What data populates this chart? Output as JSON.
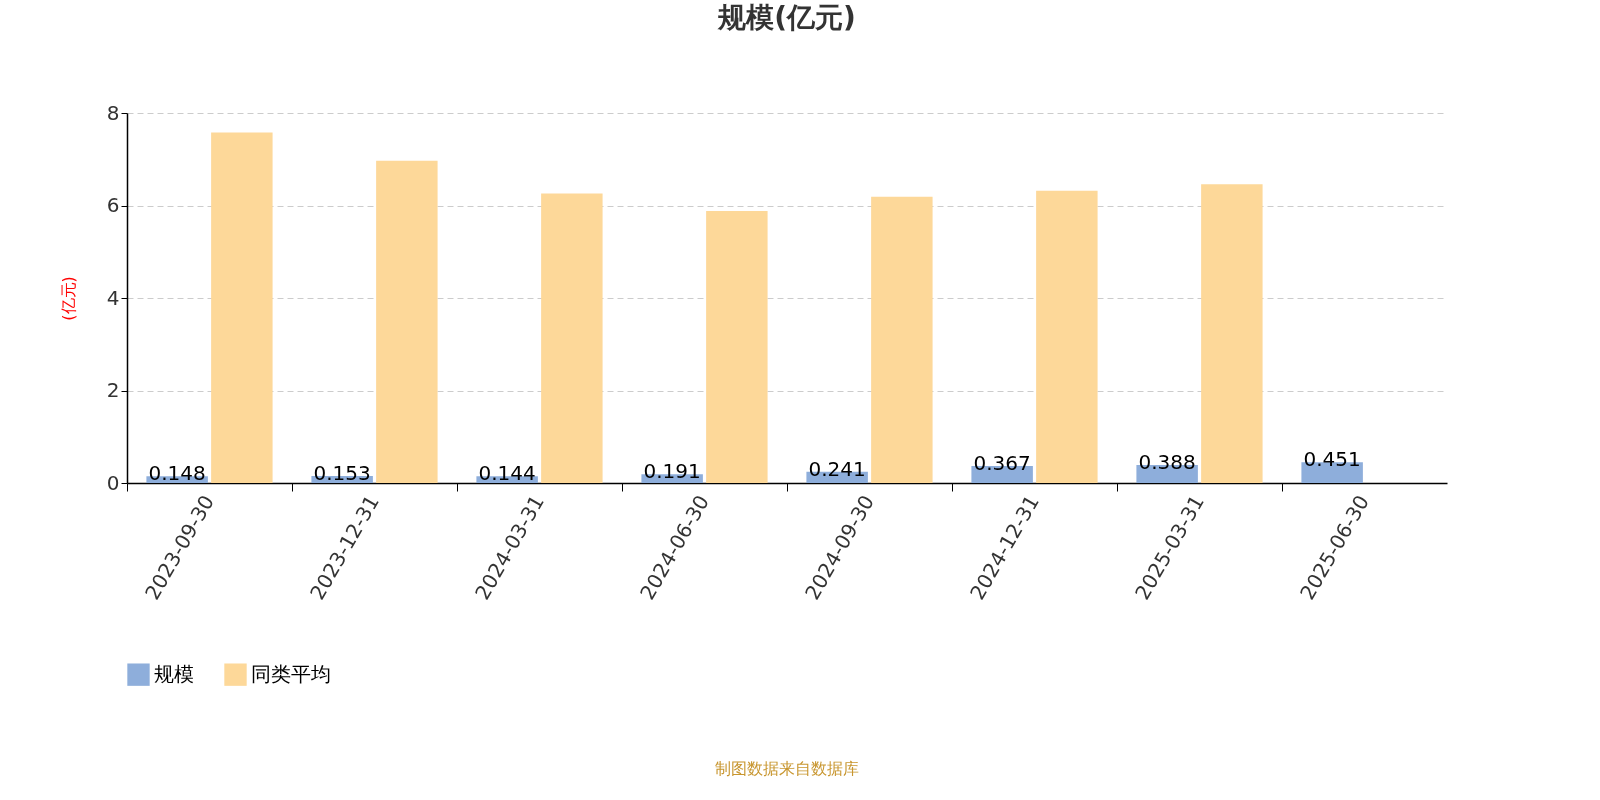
{
  "chart_data": {
    "type": "bar",
    "title": "规模(亿元)",
    "ylabel": "(亿元)",
    "categories": [
      "2023-09-30",
      "2023-12-31",
      "2024-03-31",
      "2024-06-30",
      "2024-09-30",
      "2024-12-31",
      "2025-03-31",
      "2025-06-30"
    ],
    "series": [
      {
        "name": "规模",
        "color": "#8eaedb",
        "values": [
          0.148,
          0.153,
          0.144,
          0.191,
          0.241,
          0.367,
          0.388,
          0.451
        ],
        "value_labels": [
          "0.148",
          "0.153",
          "0.144",
          "0.191",
          "0.241",
          "0.367",
          "0.388",
          "0.451"
        ]
      },
      {
        "name": "同类平均",
        "color": "#fdd899",
        "values": [
          7.58,
          6.97,
          6.26,
          5.88,
          6.19,
          6.32,
          6.46,
          null
        ]
      }
    ],
    "ylim": [
      0,
      8
    ],
    "yticks": [
      0,
      2,
      4,
      6,
      8
    ],
    "grid": "y",
    "legend": "bottom",
    "annotations": [
      "制图数据来自数据库"
    ]
  }
}
